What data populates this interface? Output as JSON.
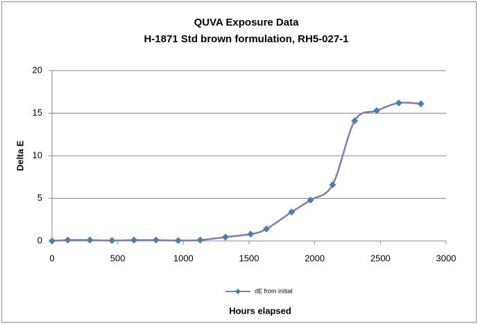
{
  "chart_data": {
    "type": "line",
    "title": "QUVA Exposure Data",
    "subtitle": "H-1871 Std brown formulation, RH5-027-1",
    "xlabel": "Hours elapsed",
    "ylabel": "Delta E",
    "x": [
      0,
      120,
      288,
      456,
      624,
      792,
      960,
      1128,
      1320,
      1512,
      1632,
      1824,
      1968,
      2136,
      2304,
      2472,
      2640,
      2808
    ],
    "series": [
      {
        "name": "dE from initial",
        "color": "#4a7ebb",
        "line_color": "#7a7cb5",
        "values": [
          0.0,
          0.1,
          0.1,
          0.05,
          0.1,
          0.1,
          0.05,
          0.1,
          0.45,
          0.8,
          1.4,
          3.4,
          4.8,
          6.6,
          14.1,
          15.3,
          16.2,
          16.1
        ]
      }
    ],
    "xlim": [
      0,
      3000
    ],
    "xticks": [
      0,
      500,
      1000,
      1500,
      2000,
      2500,
      3000
    ],
    "ylim": [
      0,
      20
    ],
    "yticks": [
      0,
      5,
      10,
      15,
      20
    ],
    "grid": true,
    "smooth": true,
    "legend": "bottom"
  }
}
